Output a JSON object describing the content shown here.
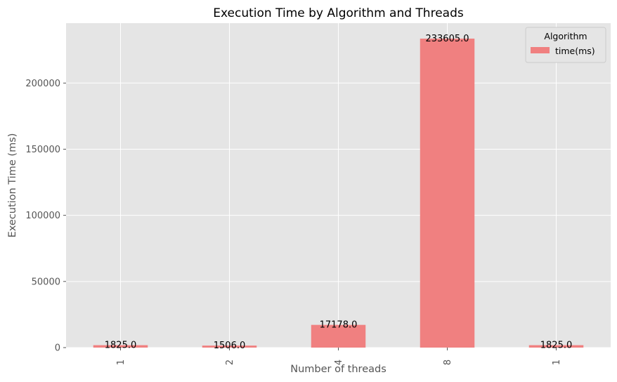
{
  "chart_data": {
    "type": "bar",
    "title": "Execution Time by Algorithm and Threads",
    "xlabel": "Number of threads",
    "ylabel": "Execution Time (ms)",
    "categories": [
      "1",
      "2",
      "4",
      "8",
      "1"
    ],
    "series": [
      {
        "name": "time(ms)",
        "values": [
          1825.0,
          1506.0,
          17178.0,
          233605.0,
          1825.0
        ],
        "color": "#f08080"
      }
    ],
    "data_labels": [
      "1825.0",
      "1506.0",
      "17178.0",
      "233605.0",
      "1825.0"
    ],
    "ylim": [
      0,
      245280
    ],
    "yticks": [
      0,
      50000,
      100000,
      150000,
      200000
    ],
    "grid": true,
    "legend": {
      "title": "Algorithm",
      "placement": "top-right"
    },
    "colors": {
      "background": "#e5e5e5",
      "grid": "#ffffff",
      "bar": "#f08080"
    }
  }
}
